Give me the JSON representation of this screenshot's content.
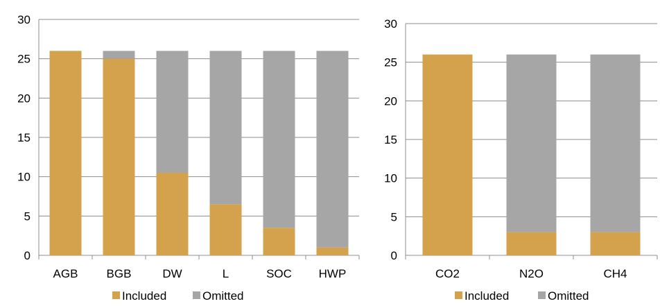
{
  "colors": {
    "included": "#D4A24C",
    "omitted": "#A6A6A6",
    "gridline": "#8C8C8C",
    "axis": "#8C8C8C"
  },
  "chart_data": [
    {
      "type": "bar",
      "stacked": true,
      "categories": [
        "AGB",
        "BGB",
        "DW",
        "L",
        "SOC",
        "HWP"
      ],
      "series": [
        {
          "name": "Included",
          "values": [
            26,
            25,
            10.5,
            6.5,
            3.5,
            1
          ]
        },
        {
          "name": "Omitted",
          "values": [
            0,
            1,
            15.5,
            19.5,
            22.5,
            25
          ]
        }
      ],
      "ylim": [
        0,
        30
      ],
      "yticks": [
        0,
        5,
        10,
        15,
        20,
        25,
        30
      ],
      "grid": true,
      "legend": "bottom",
      "xlabel": "",
      "ylabel": "",
      "title": ""
    },
    {
      "type": "bar",
      "stacked": true,
      "categories": [
        "CO2",
        "N2O",
        "CH4"
      ],
      "series": [
        {
          "name": "Included",
          "values": [
            26,
            3,
            3
          ]
        },
        {
          "name": "Omitted",
          "values": [
            0,
            23,
            23
          ]
        }
      ],
      "ylim": [
        0,
        30
      ],
      "yticks": [
        0,
        5,
        10,
        15,
        20,
        25,
        30
      ],
      "grid": true,
      "legend": "bottom",
      "xlabel": "",
      "ylabel": "",
      "title": ""
    }
  ]
}
